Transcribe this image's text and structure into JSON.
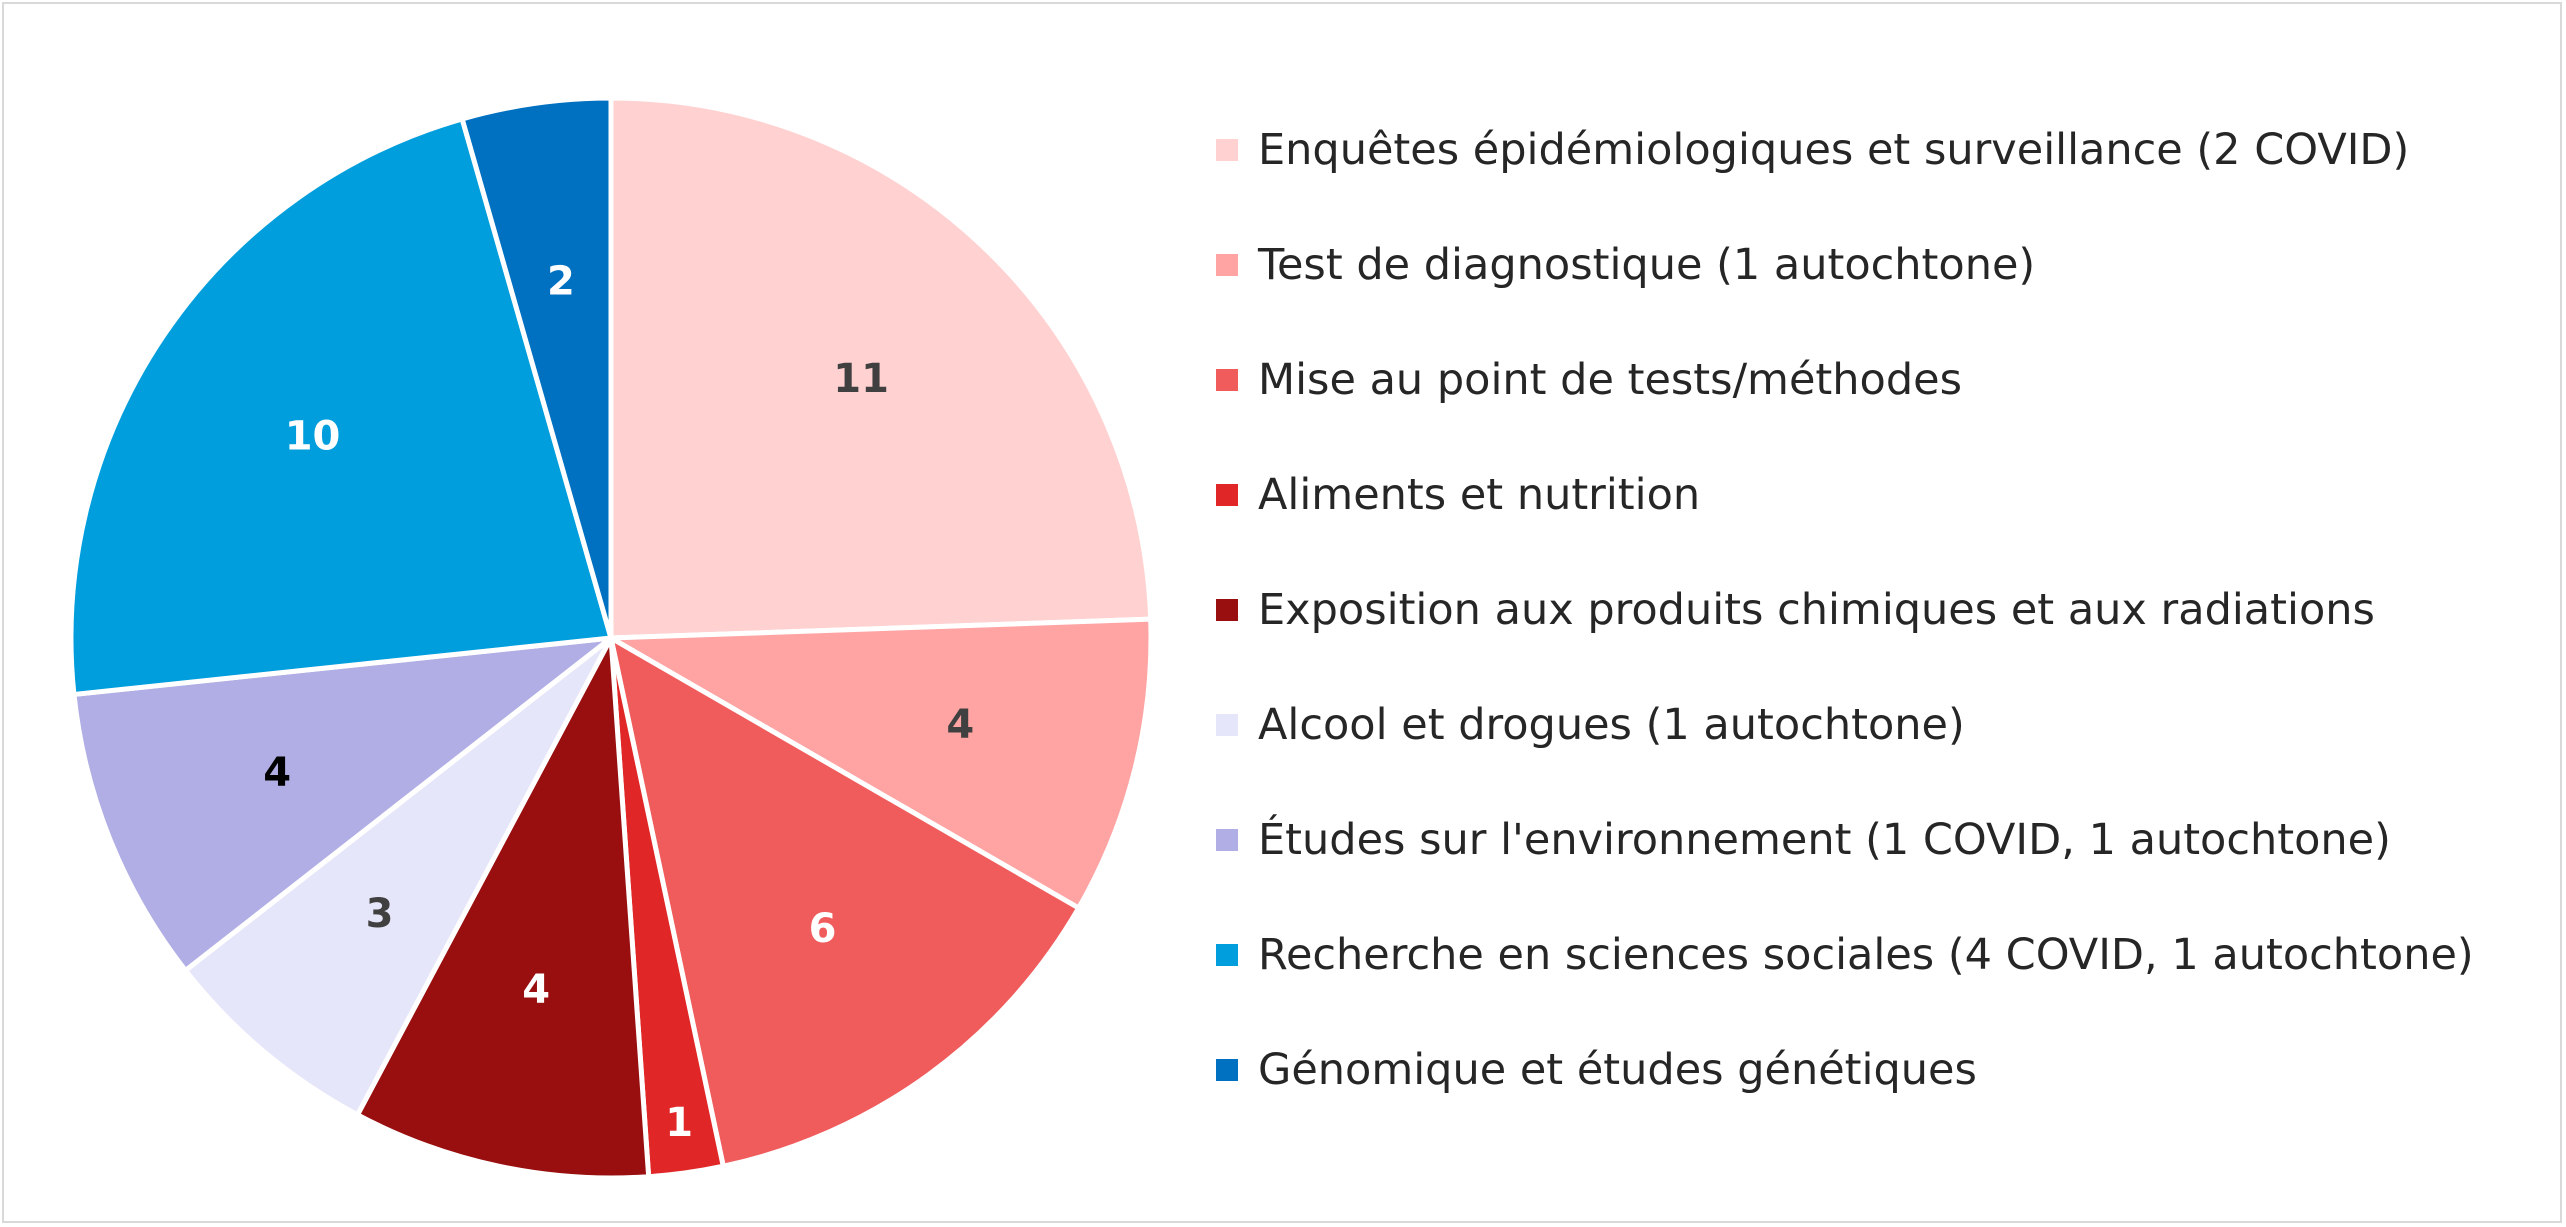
{
  "chart_data": {
    "type": "pie",
    "title": "",
    "legend_position": "right",
    "slices": [
      {
        "label": "Enquêtes épidémiologiques et surveillance (2 COVID)",
        "value": 11,
        "value_label": "11",
        "color": "#ffd1d1",
        "label_color": "#404040"
      },
      {
        "label": "Test de diagnostique (1 autochtone)",
        "value": 4,
        "value_label": "4",
        "color": "#ffa3a3",
        "label_color": "#404040"
      },
      {
        "label": "Mise au point de tests/méthodes",
        "value": 6,
        "value_label": "6",
        "color": "#f05c5c",
        "label_color": "#ffffff"
      },
      {
        "label": "Aliments et nutrition",
        "value": 1,
        "value_label": "1",
        "color": "#e02626",
        "label_color": "#ffffff"
      },
      {
        "label": "Exposition aux produits chimiques et aux radiations",
        "value": 4,
        "value_label": "4",
        "color": "#990f0f",
        "label_color": "#ffffff"
      },
      {
        "label": "Alcool et drogues (1 autochtone)",
        "value": 3,
        "value_label": "3",
        "color": "#e6e6fa",
        "label_color": "#404040"
      },
      {
        "label": "Études sur l'environnement (1 COVID, 1 autochtone)",
        "value": 4,
        "value_label": "4",
        "color": "#b0aee4",
        "label_color": "#000000"
      },
      {
        "label": "Recherche en sciences sociales (4 COVID, 1 autochtone)",
        "value": 10,
        "value_label": "10",
        "color": "#009edc",
        "label_color": "#ffffff"
      },
      {
        "label": "Génomique et études génétiques",
        "value": 2,
        "value_label": "2",
        "color": "#0070c0",
        "label_color": "#ffffff"
      }
    ]
  }
}
